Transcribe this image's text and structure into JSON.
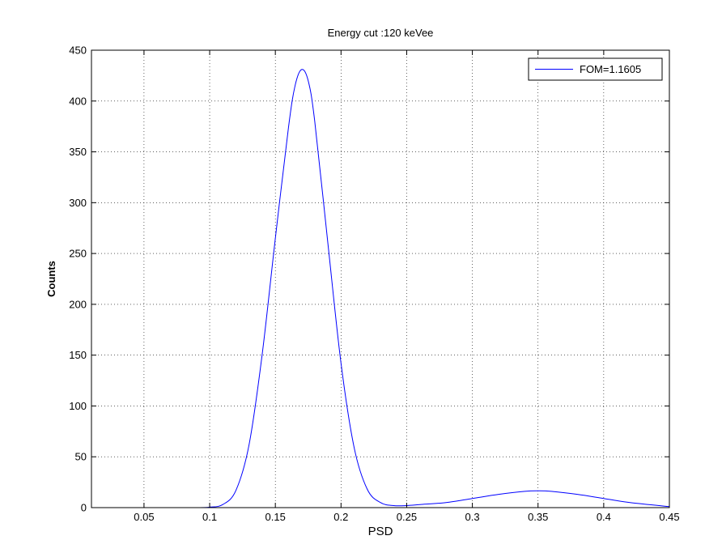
{
  "chart_data": {
    "type": "line",
    "title": "Energy cut :120 keVee",
    "xlabel": "PSD",
    "ylabel": "Counts",
    "xlim": [
      0.01,
      0.45
    ],
    "ylim": [
      0,
      450
    ],
    "xticks": [
      0.05,
      0.1,
      0.15,
      0.2,
      0.25,
      0.3,
      0.35,
      0.4,
      0.45
    ],
    "xtick_labels": [
      "0.05",
      "0.1",
      "0.15",
      "0.2",
      "0.25",
      "0.3",
      "0.35",
      "0.4",
      "0.45"
    ],
    "yticks": [
      0,
      50,
      100,
      150,
      200,
      250,
      300,
      350,
      400,
      450
    ],
    "ytick_labels": [
      "0",
      "50",
      "100",
      "150",
      "200",
      "250",
      "300",
      "350",
      "400",
      "450"
    ],
    "grid": true,
    "legend_position": "top-right",
    "series": [
      {
        "name": "FOM=1.1605",
        "color": "#0000ff",
        "x": [
          0.01,
          0.05,
          0.09,
          0.1,
          0.11,
          0.12,
          0.13,
          0.14,
          0.15,
          0.16,
          0.165,
          0.17,
          0.175,
          0.18,
          0.19,
          0.2,
          0.21,
          0.22,
          0.23,
          0.24,
          0.25,
          0.26,
          0.28,
          0.3,
          0.32,
          0.34,
          0.35,
          0.36,
          0.38,
          0.4,
          0.42,
          0.45
        ],
        "y": [
          0,
          0,
          0,
          0.5,
          3,
          17,
          62,
          151,
          265,
          374,
          415,
          431,
          420,
          380,
          260,
          142,
          59,
          18,
          5,
          2,
          2,
          3,
          5,
          9,
          13,
          16,
          16.5,
          16,
          13,
          9,
          5,
          1
        ]
      }
    ]
  }
}
